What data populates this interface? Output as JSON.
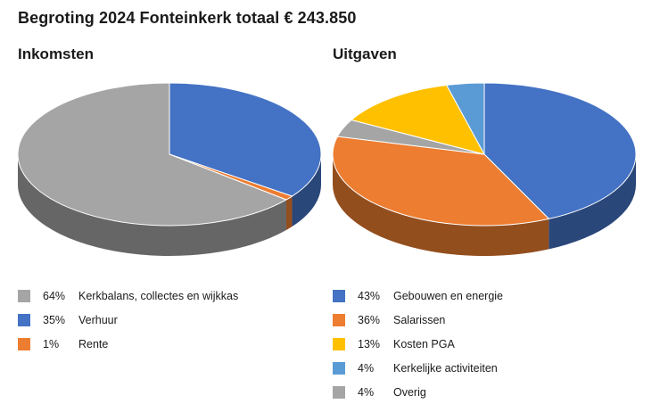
{
  "title": "Begroting 2024 Fonteinkerk totaal € 243.850",
  "chart_data": [
    {
      "type": "pie",
      "title": "Inkomsten",
      "slices": [
        {
          "label": "Verhuur",
          "percent_label": "35%",
          "value": 35,
          "color": "#4472c4"
        },
        {
          "label": "Rente",
          "percent_label": "1%",
          "value": 1,
          "color": "#ed7d31"
        },
        {
          "label": "Kerkbalans, collectes en wijkkas",
          "percent_label": "64%",
          "value": 64,
          "color": "#a5a5a5"
        }
      ],
      "legend": [
        {
          "percent_label": "64%",
          "label": "Kerkbalans, collectes en wijkkas",
          "color": "#a5a5a5"
        },
        {
          "percent_label": "35%",
          "label": "Verhuur",
          "color": "#4472c4"
        },
        {
          "percent_label": "1%",
          "label": "Rente",
          "color": "#ed7d31"
        }
      ],
      "legend_position": "bottom",
      "style": "3d"
    },
    {
      "type": "pie",
      "title": "Uitgaven",
      "slices": [
        {
          "label": "Gebouwen en energie",
          "percent_label": "43%",
          "value": 43,
          "color": "#4472c4"
        },
        {
          "label": "Salarissen",
          "percent_label": "36%",
          "value": 36,
          "color": "#ed7d31"
        },
        {
          "label": "Overig",
          "percent_label": "4%",
          "value": 4,
          "color": "#a5a5a5"
        },
        {
          "label": "Kosten PGA",
          "percent_label": "13%",
          "value": 13,
          "color": "#ffc000"
        },
        {
          "label": "Kerkelijke activiteiten",
          "percent_label": "4%",
          "value": 4,
          "color": "#5b9bd5"
        }
      ],
      "legend": [
        {
          "percent_label": "43%",
          "label": "Gebouwen en energie",
          "color": "#4472c4"
        },
        {
          "percent_label": "36%",
          "label": "Salarissen",
          "color": "#ed7d31"
        },
        {
          "percent_label": "13%",
          "label": "Kosten PGA",
          "color": "#ffc000"
        },
        {
          "percent_label": "4%",
          "label": "Kerkelijke activiteiten",
          "color": "#5b9bd5"
        },
        {
          "percent_label": "4%",
          "label": "Overig",
          "color": "#a5a5a5"
        }
      ],
      "legend_position": "bottom",
      "style": "3d"
    }
  ]
}
